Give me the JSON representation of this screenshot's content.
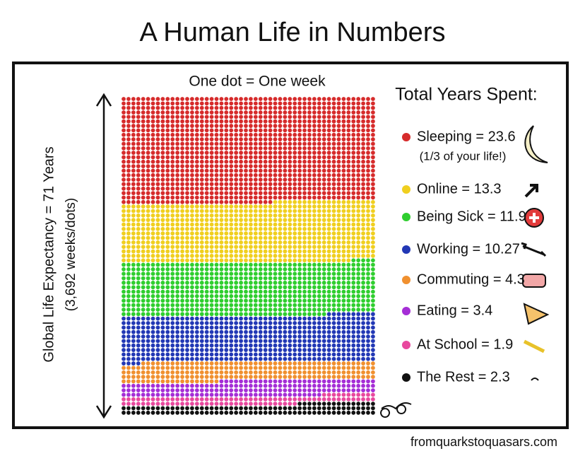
{
  "chart_data": {
    "type": "waffle",
    "title": "A Human Life in Numbers",
    "subtitle": "One dot = One week",
    "y_label": "Global Life Expectancy = 71 Years",
    "y_sublabel": "(3,692 weeks/dots)",
    "legend_title": "Total Years Spent:",
    "categories": [
      "Sleeping",
      "Online",
      "Being Sick",
      "Working",
      "Commuting",
      "Eating",
      "At School",
      "The Rest"
    ],
    "values": [
      23.6,
      13.3,
      11.9,
      10.27,
      4.3,
      3.4,
      1.9,
      2.3
    ],
    "value_labels": [
      "Sleeping = 23.6",
      "Online = 13.3",
      "Being Sick = 11.9",
      "Working = 10.27",
      "Commuting = 4.3",
      "Eating = 3.4",
      "At School = 1.9",
      "The Rest = 2.3"
    ],
    "colors": [
      "#d62b2b",
      "#f0cf1f",
      "#2fce2f",
      "#2238b5",
      "#f0902f",
      "#a52ed6",
      "#e8489e",
      "#111111"
    ],
    "annotation": "(1/3 of your life!)",
    "source": "fromquarkstoquasars.com"
  }
}
